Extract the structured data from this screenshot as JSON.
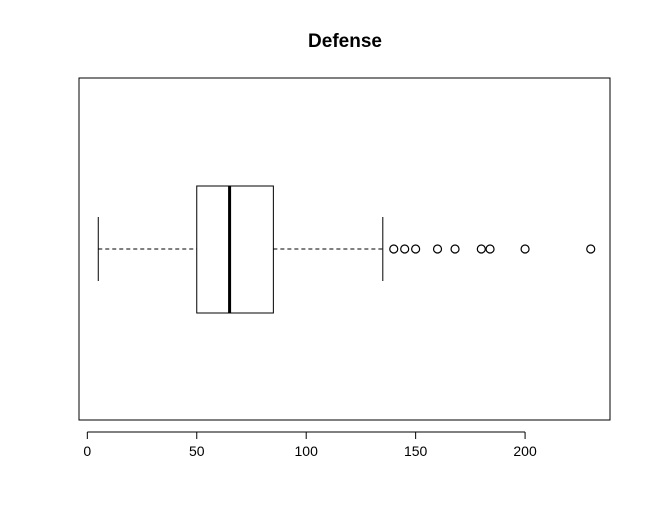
{
  "chart_data": {
    "type": "boxplot",
    "orientation": "horizontal",
    "title": "Defense",
    "xlabel": "",
    "ylabel": "",
    "xlim": [
      -3.8,
      238.8
    ],
    "xticks": [
      0,
      50,
      100,
      150,
      200
    ],
    "grid": false,
    "legend": "none",
    "series": [
      {
        "whisker_low": 5,
        "q1": 50,
        "median": 65,
        "q3": 85,
        "whisker_high": 135,
        "outliers": [
          140,
          145,
          150,
          160,
          168,
          180,
          184,
          200,
          230
        ]
      }
    ],
    "colors": {
      "box_stroke": "#000000",
      "background": "#ffffff"
    }
  }
}
